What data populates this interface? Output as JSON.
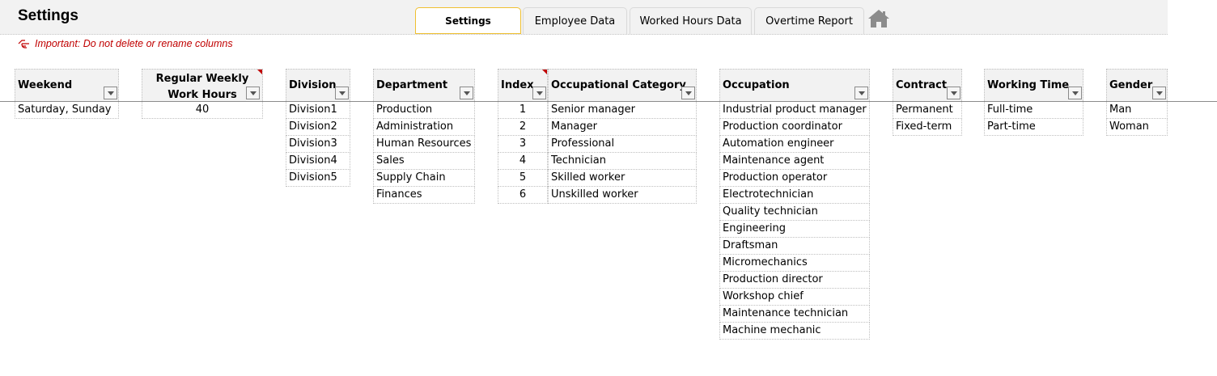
{
  "title": "Settings",
  "tabs": [
    {
      "label": "Settings",
      "active": true
    },
    {
      "label": "Employee Data"
    },
    {
      "label": "Worked Hours Data"
    },
    {
      "label": "Overtime Report"
    }
  ],
  "home_icon": "home-icon",
  "note": "Important: Do not delete or rename columns",
  "tables": {
    "weekend": {
      "header": "Weekend",
      "rows": [
        "Saturday, Sunday"
      ]
    },
    "weekly_hours": {
      "header_line1": "Regular Weekly",
      "header_line2": "Work Hours",
      "rows": [
        "40"
      ]
    },
    "division": {
      "header": "Division",
      "rows": [
        "Division1",
        "Division2",
        "Division3",
        "Division4",
        "Division5"
      ]
    },
    "department": {
      "header": "Department",
      "rows": [
        "Production",
        "Administration",
        "Human Resources",
        "Sales",
        "Supply Chain",
        "Finances"
      ]
    },
    "occ_category": {
      "index_header": "Index",
      "header": "Occupational Category",
      "rows": [
        {
          "index": "1",
          "name": "Senior manager"
        },
        {
          "index": "2",
          "name": "Manager"
        },
        {
          "index": "3",
          "name": "Professional"
        },
        {
          "index": "4",
          "name": "Technician"
        },
        {
          "index": "5",
          "name": "Skilled worker"
        },
        {
          "index": "6",
          "name": "Unskilled worker"
        }
      ]
    },
    "occupation": {
      "header": "Occupation",
      "rows": [
        "Industrial product manager",
        "Production coordinator",
        "Automation engineer",
        "Maintenance agent",
        "Production operator",
        "Electrotechnician",
        "Quality technician",
        "Engineering",
        "Draftsman",
        "Micromechanics",
        "Production director",
        "Workshop chief",
        "Maintenance technician",
        "Machine mechanic"
      ]
    },
    "contract": {
      "header": "Contract",
      "rows": [
        "Permanent",
        "Fixed-term"
      ]
    },
    "working_time": {
      "header": "Working Time",
      "rows": [
        "Full-time",
        "Part-time"
      ]
    },
    "gender": {
      "header": "Gender",
      "rows": [
        "Man",
        "Woman"
      ]
    }
  },
  "colors": {
    "note": "#c00000",
    "active_tab_border": "#f0c030",
    "header_bg": "#f2f2f2"
  }
}
